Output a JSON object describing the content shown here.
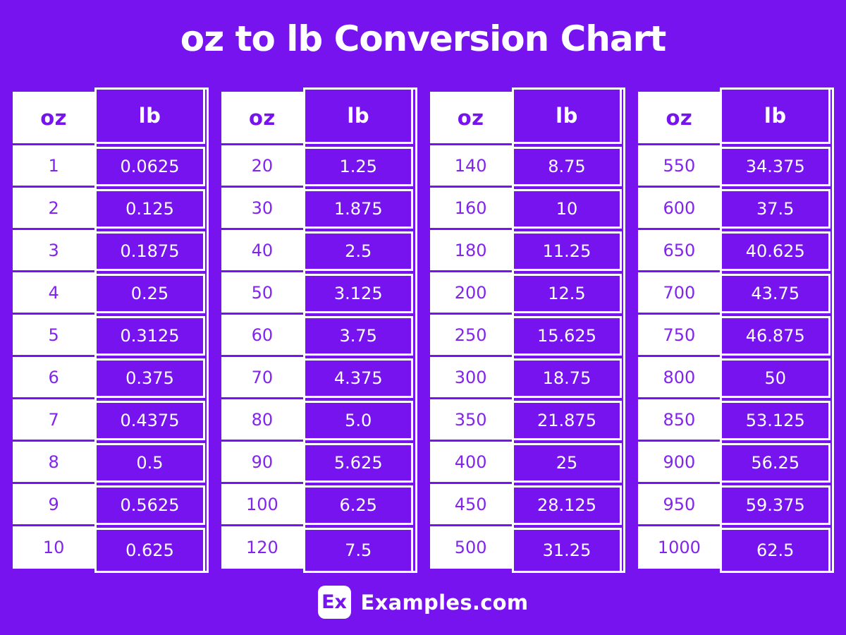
{
  "page": {
    "title": "oz to lb Conversion Chart",
    "background_color": "#7713EE",
    "text_white": "#FFFFFF",
    "oz_value_color": "#8224F0"
  },
  "chart_data": {
    "type": "table",
    "title": "oz to lb Conversion Chart",
    "column_headers": {
      "oz": "oz",
      "lb": "lb"
    },
    "tables": [
      {
        "rows": [
          {
            "oz": "1",
            "lb": "0.0625"
          },
          {
            "oz": "2",
            "lb": "0.125"
          },
          {
            "oz": "3",
            "lb": "0.1875"
          },
          {
            "oz": "4",
            "lb": "0.25"
          },
          {
            "oz": "5",
            "lb": "0.3125"
          },
          {
            "oz": "6",
            "lb": "0.375"
          },
          {
            "oz": "7",
            "lb": "0.4375"
          },
          {
            "oz": "8",
            "lb": "0.5"
          },
          {
            "oz": "9",
            "lb": "0.5625"
          },
          {
            "oz": "10",
            "lb": "0.625"
          }
        ]
      },
      {
        "rows": [
          {
            "oz": "20",
            "lb": "1.25"
          },
          {
            "oz": "30",
            "lb": "1.875"
          },
          {
            "oz": "40",
            "lb": "2.5"
          },
          {
            "oz": "50",
            "lb": "3.125"
          },
          {
            "oz": "60",
            "lb": "3.75"
          },
          {
            "oz": "70",
            "lb": "4.375"
          },
          {
            "oz": "80",
            "lb": "5.0"
          },
          {
            "oz": "90",
            "lb": "5.625"
          },
          {
            "oz": "100",
            "lb": "6.25"
          },
          {
            "oz": "120",
            "lb": "7.5"
          }
        ]
      },
      {
        "rows": [
          {
            "oz": "140",
            "lb": "8.75"
          },
          {
            "oz": "160",
            "lb": "10"
          },
          {
            "oz": "180",
            "lb": "11.25"
          },
          {
            "oz": "200",
            "lb": "12.5"
          },
          {
            "oz": "250",
            "lb": "15.625"
          },
          {
            "oz": "300",
            "lb": "18.75"
          },
          {
            "oz": "350",
            "lb": "21.875"
          },
          {
            "oz": "400",
            "lb": "25"
          },
          {
            "oz": "450",
            "lb": "28.125"
          },
          {
            "oz": "500",
            "lb": "31.25"
          }
        ]
      },
      {
        "rows": [
          {
            "oz": "550",
            "lb": "34.375"
          },
          {
            "oz": "600",
            "lb": "37.5"
          },
          {
            "oz": "650",
            "lb": "40.625"
          },
          {
            "oz": "700",
            "lb": "43.75"
          },
          {
            "oz": "750",
            "lb": "46.875"
          },
          {
            "oz": "800",
            "lb": "50"
          },
          {
            "oz": "850",
            "lb": "53.125"
          },
          {
            "oz": "900",
            "lb": "56.25"
          },
          {
            "oz": "950",
            "lb": "59.375"
          },
          {
            "oz": "1000",
            "lb": "62.5"
          }
        ]
      }
    ]
  },
  "footer": {
    "logo_text": "Ex",
    "brand": "Examples.com"
  }
}
